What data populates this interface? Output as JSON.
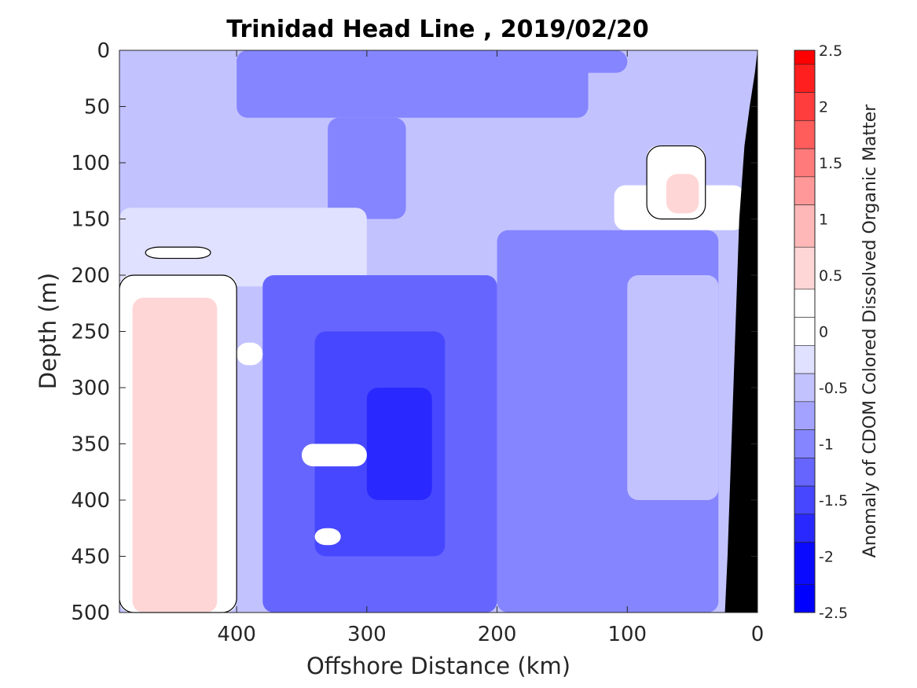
{
  "chart_data": {
    "type": "heatmap",
    "title": "Trinidad Head Line , 2019/02/20",
    "xlabel": "Offshore Distance (km)",
    "ylabel": "Depth (m)",
    "colorbar_label": "Anomaly of CDOM Colored Dissolved Organic Matter",
    "xlim": [
      490,
      0
    ],
    "x_reversed": true,
    "ylim": [
      0,
      500
    ],
    "y_reversed": true,
    "x_ticks": [
      400,
      300,
      200,
      100,
      0
    ],
    "y_ticks": [
      0,
      50,
      100,
      150,
      200,
      250,
      300,
      350,
      400,
      450,
      500
    ],
    "colorbar_range": [
      -2.5,
      2.5
    ],
    "colorbar_ticks": [
      -2.5,
      -2,
      -1.5,
      -1,
      -0.5,
      0,
      0.5,
      1,
      1.5,
      2,
      2.5
    ],
    "colorbar_levels": [
      {
        "value": 2.5,
        "color": "#ff0000"
      },
      {
        "value": 2.25,
        "color": "#ff1f1f"
      },
      {
        "value": 2.0,
        "color": "#ff3d3d"
      },
      {
        "value": 1.75,
        "color": "#ff5c5c"
      },
      {
        "value": 1.5,
        "color": "#ff7a7a"
      },
      {
        "value": 1.25,
        "color": "#ff9999"
      },
      {
        "value": 1.0,
        "color": "#ffb8b8"
      },
      {
        "value": 0.5,
        "color": "#ffd6d6"
      },
      {
        "value": 0.25,
        "color": "#ffffff"
      },
      {
        "value": 0.0,
        "color": "#ffffff"
      },
      {
        "value": -0.25,
        "color": "#e0e0ff"
      },
      {
        "value": -0.5,
        "color": "#c2c2ff"
      },
      {
        "value": -0.75,
        "color": "#a3a3ff"
      },
      {
        "value": -1.0,
        "color": "#8585ff"
      },
      {
        "value": -1.25,
        "color": "#6666ff"
      },
      {
        "value": -1.5,
        "color": "#4747ff"
      },
      {
        "value": -1.75,
        "color": "#2929ff"
      },
      {
        "value": -2.0,
        "color": "#0a0aff"
      },
      {
        "value": -2.5,
        "color": "#0000ff"
      }
    ],
    "zero_contour": true,
    "bathymetry_color": "#000000",
    "regions": [
      {
        "x": [
          490,
          0
        ],
        "y": [
          0,
          500
        ],
        "value": -0.6
      },
      {
        "x": [
          400,
          130
        ],
        "y": [
          0,
          60
        ],
        "value": -1.0
      },
      {
        "x": [
          330,
          270
        ],
        "y": [
          60,
          150
        ],
        "value": -1.0
      },
      {
        "x": [
          400,
          100
        ],
        "y": [
          0,
          20
        ],
        "value": -1.1
      },
      {
        "x": [
          490,
          300
        ],
        "y": [
          140,
          210
        ],
        "value": -0.2
      },
      {
        "x": [
          110,
          10
        ],
        "y": [
          120,
          160
        ],
        "value": 0.0
      },
      {
        "x": [
          490,
          400
        ],
        "y": [
          200,
          500
        ],
        "value": 0.2
      },
      {
        "x": [
          480,
          415
        ],
        "y": [
          220,
          500
        ],
        "value": 0.4
      },
      {
        "x": [
          85,
          40
        ],
        "y": [
          85,
          150
        ],
        "value": 0.2
      },
      {
        "x": [
          70,
          45
        ],
        "y": [
          110,
          145
        ],
        "value": 0.4
      },
      {
        "x": [
          470,
          420
        ],
        "y": [
          175,
          185
        ],
        "value": 0.3
      },
      {
        "x": [
          380,
          200
        ],
        "y": [
          200,
          500
        ],
        "value": -1.2
      },
      {
        "x": [
          340,
          240
        ],
        "y": [
          250,
          450
        ],
        "value": -1.5
      },
      {
        "x": [
          300,
          250
        ],
        "y": [
          300,
          400
        ],
        "value": -1.7
      },
      {
        "x": [
          200,
          30
        ],
        "y": [
          160,
          500
        ],
        "value": -0.9
      },
      {
        "x": [
          100,
          30
        ],
        "y": [
          200,
          400
        ],
        "value": -0.5
      },
      {
        "x": [
          350,
          300
        ],
        "y": [
          350,
          370
        ],
        "value": 0.0
      },
      {
        "x": [
          340,
          320
        ],
        "y": [
          425,
          440
        ],
        "value": 0.0
      },
      {
        "x": [
          400,
          380
        ],
        "y": [
          260,
          280
        ],
        "value": 0.0
      }
    ],
    "bathymetry": {
      "x": [
        0,
        2,
        6,
        10,
        14,
        17,
        20,
        23,
        25
      ],
      "depth": [
        0,
        20,
        50,
        85,
        150,
        250,
        350,
        450,
        500
      ]
    }
  }
}
